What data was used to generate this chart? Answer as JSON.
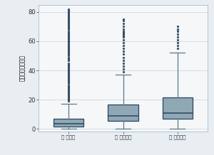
{
  "title": "",
  "ylabel": "耕作放棴地（％）",
  "xlabels": [
    "畑 対照群",
    "畑 継続耕地",
    "畑 急傾斜地"
  ],
  "ylim": [
    -2,
    85
  ],
  "yticks": [
    0,
    20,
    40,
    60,
    80
  ],
  "bg_color": "#e8eef2",
  "plot_bg_color": "#f5f7f8",
  "box_facecolor": "#8fa8b5",
  "box_edgecolor": "#2b4560",
  "median_color": "#2b4560",
  "whisker_color": "#5a7a90",
  "cap_color": "#5a7a90",
  "flier_color": "#2b4560",
  "grid_color": "#d0d8de",
  "boxes": [
    {
      "q1": 1.5,
      "median": 3.5,
      "q3": 7.0,
      "whislo": 0.0,
      "whishi": 17.0,
      "fliers_y": [
        19,
        20,
        21,
        22,
        23,
        24,
        25,
        26,
        27,
        28,
        29,
        30,
        31,
        32,
        33,
        34,
        35,
        36,
        37,
        38,
        39,
        40,
        41,
        42,
        43,
        44,
        45,
        47,
        48,
        49,
        50,
        51,
        52,
        53,
        54,
        55,
        56,
        57,
        58,
        59,
        60,
        61,
        62,
        63,
        64,
        65,
        66,
        67,
        68,
        69,
        70,
        71,
        72,
        73,
        74,
        75,
        76,
        77,
        78,
        79,
        80,
        81,
        82
      ]
    },
    {
      "q1": 5.5,
      "median": 9.0,
      "q3": 16.5,
      "whislo": 0.0,
      "whishi": 37.0,
      "fliers_y": [
        39,
        41,
        43,
        45,
        47,
        49,
        51,
        53,
        55,
        57,
        59,
        61,
        63,
        64,
        65,
        66,
        67,
        68,
        70,
        72,
        74,
        75
      ]
    },
    {
      "q1": 7.0,
      "median": 11.0,
      "q3": 21.5,
      "whislo": 0.0,
      "whishi": 52.0,
      "fliers_y": [
        55,
        57,
        59,
        61,
        63,
        65,
        67,
        68,
        70
      ]
    }
  ]
}
